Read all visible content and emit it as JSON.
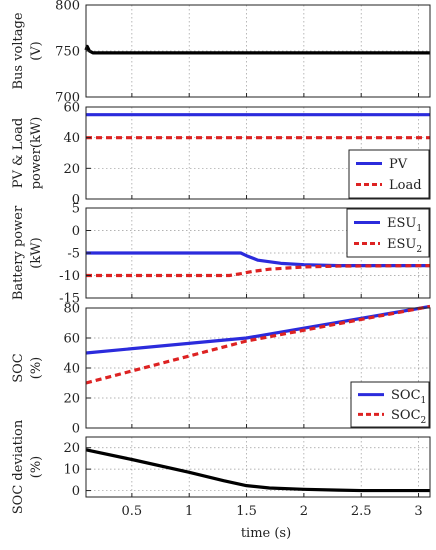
{
  "chart_data": [
    {
      "type": "line",
      "ylabel_lines": [
        "Bus voltage",
        "(V)"
      ],
      "ylim": [
        700,
        800
      ],
      "yticks": [
        700,
        750,
        800
      ],
      "xlim": [
        0.1,
        3.1
      ],
      "xticks": [
        0.5,
        1,
        1.5,
        2,
        2.5,
        3
      ],
      "grid": true,
      "series": [
        {
          "color": "#000000",
          "dash": "",
          "x": [
            0.1,
            0.11,
            0.13,
            0.16,
            0.2,
            0.3,
            3.1
          ],
          "y": [
            751,
            755,
            750,
            748,
            748,
            748,
            748
          ]
        }
      ]
    },
    {
      "type": "line",
      "ylabel_lines": [
        "PV & Load",
        "power(kW)"
      ],
      "ylim": [
        0,
        60
      ],
      "yticks": [
        0,
        20,
        40,
        60
      ],
      "xlim": [
        0.1,
        3.1
      ],
      "xticks": [
        0.5,
        1,
        1.5,
        2,
        2.5,
        3
      ],
      "grid": true,
      "legend": "lower-right",
      "series": [
        {
          "name": "PV",
          "color": "#2b2bdc",
          "dash": "",
          "x": [
            0.1,
            3.1
          ],
          "y": [
            55,
            55
          ]
        },
        {
          "name": "Load",
          "color": "#dd2222",
          "dash": "6 4",
          "x": [
            0.1,
            3.1
          ],
          "y": [
            40,
            40
          ]
        }
      ]
    },
    {
      "type": "line",
      "ylabel_lines": [
        "Battery power",
        "(kW)"
      ],
      "ylim": [
        -15,
        5
      ],
      "yticks": [
        -15,
        -10,
        -5,
        0,
        5
      ],
      "xlim": [
        0.1,
        3.1
      ],
      "xticks": [
        0.5,
        1,
        1.5,
        2,
        2.5,
        3
      ],
      "grid": true,
      "legend": "upper-right",
      "series": [
        {
          "name": "ESU",
          "sub": "1",
          "color": "#2b2bdc",
          "dash": "",
          "x": [
            0.1,
            1.45,
            1.5,
            1.6,
            1.8,
            2.0,
            2.3,
            3.1
          ],
          "y": [
            -5,
            -5,
            -5.6,
            -6.6,
            -7.3,
            -7.6,
            -7.8,
            -7.8
          ]
        },
        {
          "name": "ESU",
          "sub": "2",
          "color": "#dd2222",
          "dash": "6 4",
          "x": [
            0.1,
            1.35,
            1.45,
            1.55,
            1.7,
            2.0,
            2.3,
            3.1
          ],
          "y": [
            -10,
            -10,
            -9.6,
            -9.1,
            -8.6,
            -8.1,
            -7.9,
            -7.8
          ]
        }
      ]
    },
    {
      "type": "line",
      "ylabel_lines": [
        "SOC",
        "(%)"
      ],
      "ylim": [
        0,
        80
      ],
      "yticks": [
        0,
        20,
        40,
        60,
        80
      ],
      "xlim": [
        0.1,
        3.1
      ],
      "xticks": [
        0.5,
        1,
        1.5,
        2,
        2.5,
        3
      ],
      "grid": true,
      "legend": "lower-right",
      "series": [
        {
          "name": "SOC",
          "sub": "1",
          "color": "#2b2bdc",
          "dash": "",
          "x": [
            0.1,
            1.5,
            3.1
          ],
          "y": [
            50,
            60,
            81
          ]
        },
        {
          "name": "SOC",
          "sub": "2",
          "color": "#dd2222",
          "dash": "6 4",
          "x": [
            0.1,
            1.5,
            3.1
          ],
          "y": [
            30,
            58,
            81
          ]
        }
      ]
    },
    {
      "type": "line",
      "ylabel_lines": [
        "SOC deviation",
        "(%)"
      ],
      "ylim": [
        -3,
        25
      ],
      "yticks": [
        0,
        10,
        20
      ],
      "xlim": [
        0.1,
        3.1
      ],
      "xticks": [
        0.5,
        1,
        1.5,
        2,
        2.5,
        3
      ],
      "xlabel": "time (s)",
      "grid": true,
      "series": [
        {
          "color": "#000000",
          "dash": "",
          "x": [
            0.1,
            0.5,
            1.0,
            1.3,
            1.5,
            1.7,
            2.0,
            2.3,
            2.5,
            3.1
          ],
          "y": [
            19,
            14.5,
            8.5,
            4.6,
            2.3,
            1.2,
            0.6,
            0.2,
            0,
            0
          ]
        }
      ]
    }
  ]
}
